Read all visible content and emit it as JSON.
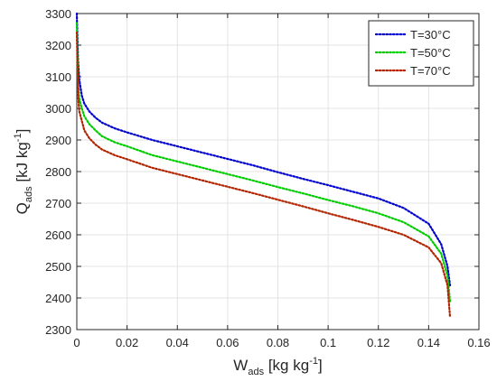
{
  "chart_data": {
    "type": "line",
    "xlabel": {
      "main": "W",
      "sub": "ads",
      "unit": " [kg kg",
      "exp": "-1",
      "close": "]"
    },
    "ylabel": {
      "main": "Q",
      "sub": "ads",
      "unit": " [kJ kg",
      "exp": "-1",
      "close": "]"
    },
    "xlim": [
      0,
      0.16
    ],
    "ylim": [
      2300,
      3300
    ],
    "xticks": [
      0,
      0.02,
      0.04,
      0.06,
      0.08,
      0.1,
      0.12,
      0.14,
      0.16
    ],
    "xtick_labels": [
      "0",
      "0.02",
      "0.04",
      "0.06",
      "0.08",
      "0.1",
      "0.12",
      "0.14",
      "0.16"
    ],
    "yticks": [
      2300,
      2400,
      2500,
      2600,
      2700,
      2800,
      2900,
      3000,
      3100,
      3200,
      3300
    ],
    "ytick_labels": [
      "2300",
      "2400",
      "2500",
      "2600",
      "2700",
      "2800",
      "2900",
      "3000",
      "3100",
      "3200",
      "3300"
    ],
    "grid": true,
    "legend_position": "top-right",
    "line_style": "dotted",
    "series": [
      {
        "name": "T=30°C",
        "color": "#0000cc",
        "x": [
          0.0,
          0.0005,
          0.001,
          0.002,
          0.003,
          0.005,
          0.0075,
          0.01,
          0.015,
          0.02,
          0.03,
          0.04,
          0.05,
          0.06,
          0.07,
          0.08,
          0.09,
          0.1,
          0.11,
          0.12,
          0.13,
          0.14,
          0.145,
          0.1475,
          0.1485
        ],
        "y": [
          3300,
          3150,
          3090,
          3040,
          3015,
          2990,
          2970,
          2955,
          2937,
          2924,
          2900,
          2880,
          2860,
          2840,
          2820,
          2798,
          2777,
          2757,
          2736,
          2715,
          2685,
          2635,
          2570,
          2500,
          2440
        ]
      },
      {
        "name": "T=50°C",
        "color": "#00cc00",
        "x": [
          0.0,
          0.0005,
          0.001,
          0.002,
          0.003,
          0.005,
          0.0075,
          0.01,
          0.015,
          0.02,
          0.03,
          0.04,
          0.05,
          0.06,
          0.07,
          0.08,
          0.09,
          0.1,
          0.11,
          0.12,
          0.13,
          0.14,
          0.145,
          0.1475,
          0.1485
        ],
        "y": [
          3270,
          3080,
          3030,
          3000,
          2975,
          2950,
          2930,
          2912,
          2893,
          2880,
          2852,
          2832,
          2812,
          2792,
          2772,
          2751,
          2731,
          2710,
          2690,
          2668,
          2640,
          2595,
          2540,
          2470,
          2390
        ]
      },
      {
        "name": "T=70°C",
        "color": "#b32400",
        "x": [
          0.0,
          0.0005,
          0.001,
          0.002,
          0.003,
          0.005,
          0.0075,
          0.01,
          0.015,
          0.02,
          0.03,
          0.04,
          0.05,
          0.06,
          0.07,
          0.08,
          0.09,
          0.1,
          0.11,
          0.12,
          0.13,
          0.14,
          0.145,
          0.1475,
          0.1485
        ],
        "y": [
          3240,
          3040,
          2990,
          2960,
          2930,
          2905,
          2885,
          2870,
          2852,
          2839,
          2812,
          2792,
          2772,
          2752,
          2732,
          2711,
          2690,
          2668,
          2647,
          2625,
          2600,
          2560,
          2510,
          2440,
          2340
        ]
      }
    ]
  }
}
